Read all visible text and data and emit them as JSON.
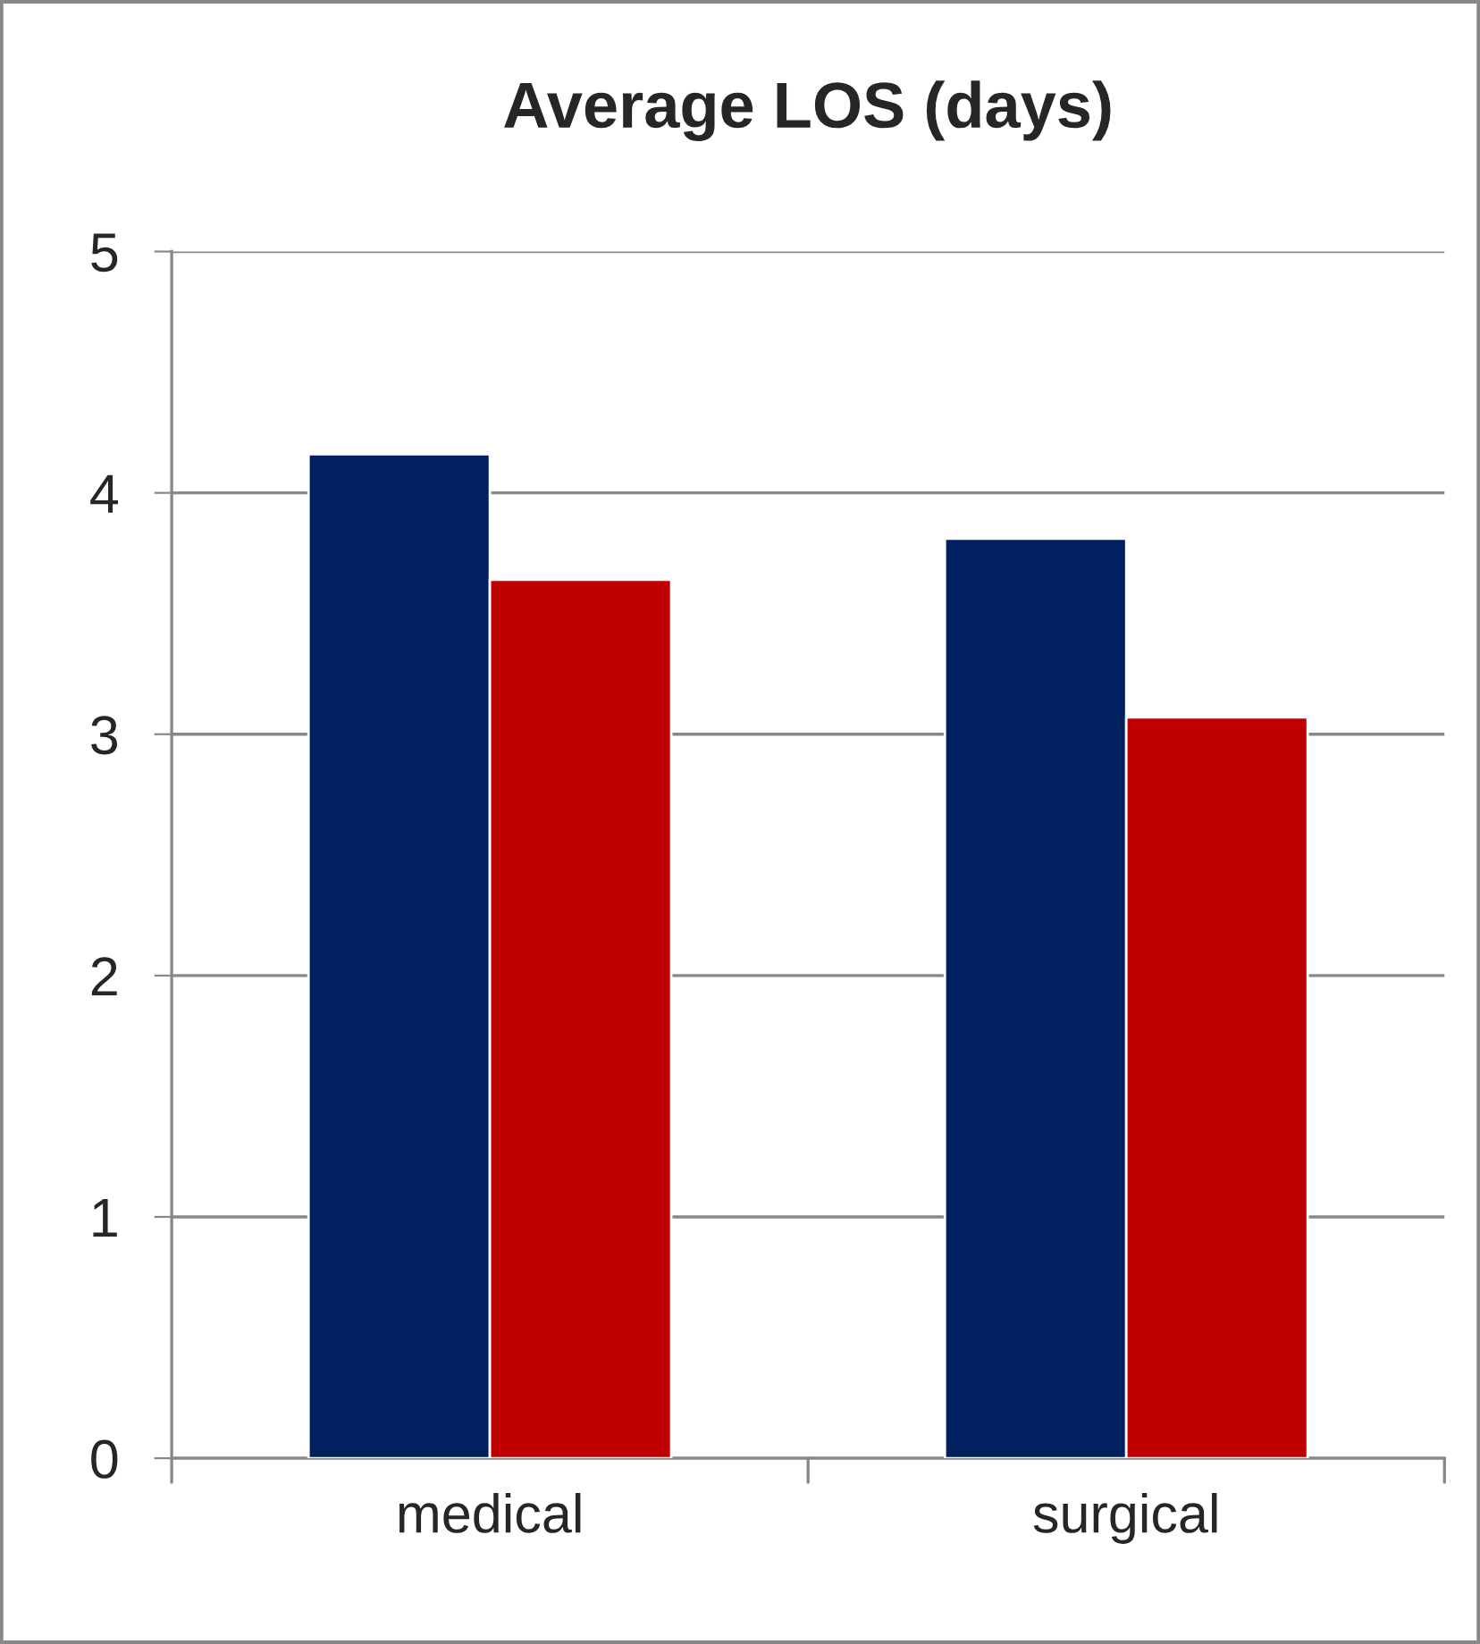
{
  "chart_data": {
    "type": "bar",
    "title": "Average LOS (days)",
    "categories": [
      "medical",
      "surgical"
    ],
    "series": [
      {
        "color": "#002060",
        "values": [
          4.16,
          3.81
        ]
      },
      {
        "color": "#c00000",
        "values": [
          3.64,
          3.07
        ]
      }
    ],
    "ylim": [
      0,
      5
    ],
    "yticks": [
      0,
      1,
      2,
      3,
      4,
      5
    ],
    "grid": "y",
    "legend": false
  }
}
